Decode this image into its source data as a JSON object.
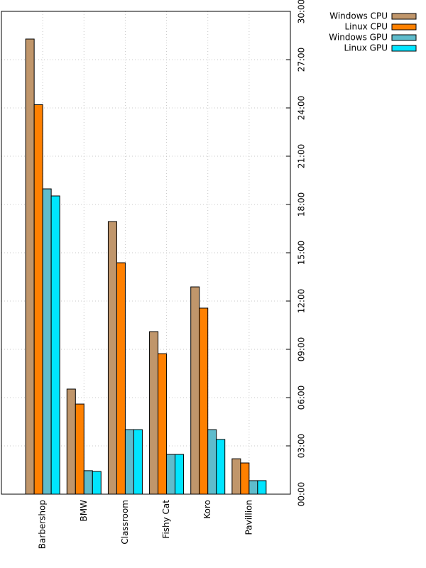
{
  "chart_data": {
    "type": "bar",
    "categories": [
      "Barbershop",
      "BMW",
      "Classroom",
      "Fishy Cat",
      "Koro",
      "Pavillion"
    ],
    "series": [
      {
        "name": "Windows CPU",
        "color": "#c0966b",
        "values": [
          28.28,
          6.53,
          16.94,
          10.1,
          12.88,
          2.2
        ]
      },
      {
        "name": "Linux CPU",
        "color": "#ff8000",
        "values": [
          24.2,
          5.6,
          14.38,
          8.73,
          11.56,
          1.94
        ]
      },
      {
        "name": "Windows GPU",
        "color": "#5fbccc",
        "values": [
          18.97,
          1.46,
          4.01,
          2.47,
          4.01,
          0.84
        ]
      },
      {
        "name": "Linux GPU",
        "color": "#00e5ff",
        "values": [
          18.53,
          1.41,
          4.01,
          2.47,
          3.4,
          0.84
        ]
      }
    ],
    "ylim": [
      0,
      30
    ],
    "yticks": [
      {
        "value": 0,
        "label": "00:00"
      },
      {
        "value": 3,
        "label": "03:00"
      },
      {
        "value": 6,
        "label": "06:00"
      },
      {
        "value": 9,
        "label": "09:00"
      },
      {
        "value": 12,
        "label": "12:00"
      },
      {
        "value": 15,
        "label": "15:00"
      },
      {
        "value": 18,
        "label": "18:00"
      },
      {
        "value": 21,
        "label": "21:00"
      },
      {
        "value": 24,
        "label": "24:00"
      },
      {
        "value": 27,
        "label": "27:00"
      },
      {
        "value": 30,
        "label": "30:00"
      }
    ],
    "grid": true,
    "legend": "top-right"
  }
}
